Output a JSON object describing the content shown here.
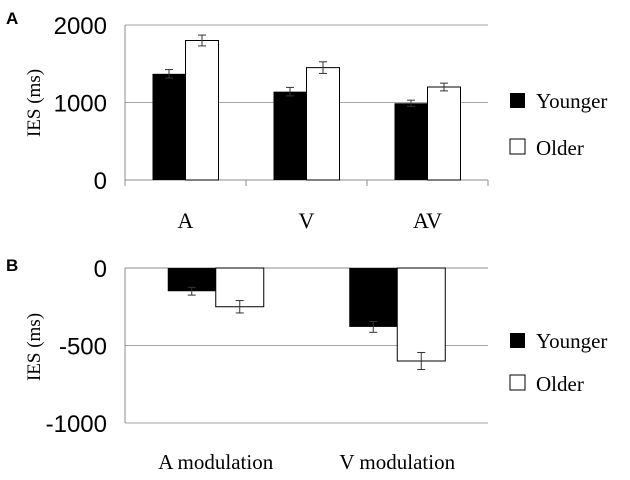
{
  "colors": {
    "younger": "#000000",
    "older": "#ffffff",
    "grid": "#a6a6a6"
  },
  "chart_data": [
    {
      "panel": "A",
      "type": "bar",
      "ylabel": "IES (ms)",
      "categories": [
        "A",
        "V",
        "AV"
      ],
      "ylim": [
        0,
        2000
      ],
      "yticks": [
        0,
        1000,
        2000
      ],
      "ytick_labels": [
        "0",
        "1000",
        "2000"
      ],
      "series": [
        {
          "name": "Younger",
          "values": [
            1370,
            1140,
            990
          ],
          "errors": [
            55,
            55,
            40
          ]
        },
        {
          "name": "Older",
          "values": [
            1800,
            1450,
            1200
          ],
          "errors": [
            70,
            75,
            50
          ]
        }
      ],
      "legend": "right"
    },
    {
      "panel": "B",
      "type": "bar",
      "ylabel": "IES (ms)",
      "categories": [
        "A modulation",
        "V modulation"
      ],
      "ylim": [
        -1000,
        0
      ],
      "yticks": [
        0,
        -500,
        -1000
      ],
      "ytick_labels": [
        "0",
        "-500",
        "-1000"
      ],
      "series": [
        {
          "name": "Younger",
          "values": [
            -150,
            -380
          ],
          "errors": [
            25,
            35
          ]
        },
        {
          "name": "Older",
          "values": [
            -250,
            -600
          ],
          "errors": [
            40,
            55
          ]
        }
      ],
      "legend": "right"
    }
  ]
}
